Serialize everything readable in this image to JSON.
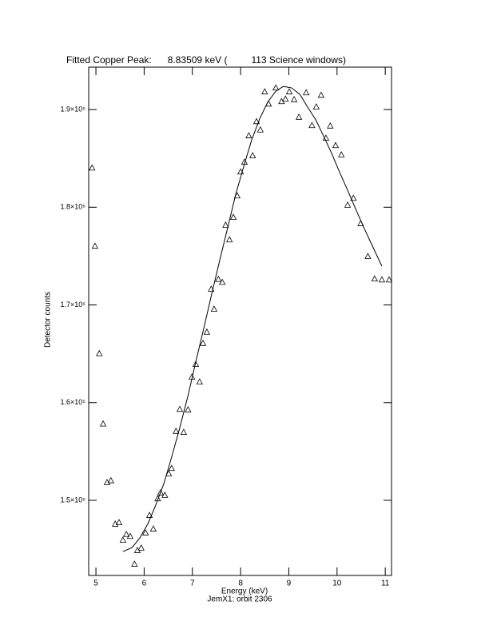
{
  "chart_data": {
    "type": "scatter",
    "title": "Fitted Copper Peak:      8.83509 keV (         113 Science windows)",
    "x_label": "Energy (keV)",
    "subtitle": "JemX1: orbit 2306",
    "y_label": "Detector counts",
    "xlim": [
      4.85,
      11.13
    ],
    "ylim": [
      142310,
      194340
    ],
    "xticks": [
      5,
      6,
      7,
      8,
      9,
      10,
      11
    ],
    "yticks": [
      {
        "value": 150000,
        "label": "1.5×10⁵"
      },
      {
        "value": 160000,
        "label": "1.6×10⁵"
      },
      {
        "value": 170000,
        "label": "1.7×10⁵"
      },
      {
        "value": 180000,
        "label": "1.8×10⁵"
      },
      {
        "value": 190000,
        "label": "1.9×10⁵"
      }
    ],
    "series": [
      {
        "style": "marker",
        "color": "#000000",
        "x": [
          4.92,
          4.98,
          5.07,
          5.15,
          5.23,
          5.31,
          5.4,
          5.48,
          5.56,
          5.63,
          5.71,
          5.8,
          5.86,
          5.94,
          6.03,
          6.11,
          6.19,
          6.28,
          6.34,
          6.43,
          6.51,
          6.57,
          6.66,
          6.74,
          6.82,
          6.91,
          6.99,
          7.07,
          7.15,
          7.22,
          7.3,
          7.39,
          7.45,
          7.54,
          7.62,
          7.69,
          7.77,
          7.85,
          7.93,
          8.0,
          8.08,
          8.17,
          8.25,
          8.33,
          8.41,
          8.5,
          8.58,
          8.73,
          8.85,
          8.93,
          9.01,
          9.11,
          9.21,
          9.36,
          9.48,
          9.57,
          9.67,
          9.77,
          9.86,
          9.97,
          10.09,
          10.22,
          10.34,
          10.49,
          10.64,
          10.78,
          10.93,
          11.08
        ],
        "values": [
          184000,
          176000,
          165000,
          157800,
          151800,
          152000,
          147550,
          147700,
          145900,
          146500,
          146300,
          143450,
          144850,
          145100,
          146650,
          148450,
          147050,
          150150,
          150750,
          150500,
          152700,
          153250,
          157050,
          159300,
          156950,
          159250,
          162600,
          163900,
          162100,
          166050,
          167200,
          171600,
          169550,
          172600,
          172300,
          178150,
          176650,
          178950,
          181150,
          183600,
          184600,
          187300,
          185250,
          188750,
          187900,
          191800,
          190550,
          192200,
          190800,
          191050,
          191800,
          191000,
          189200,
          191700,
          188350,
          190250,
          191450,
          187050,
          188300,
          186300,
          185350,
          180200,
          180900,
          178300,
          174950,
          172650,
          172550,
          172550
        ]
      },
      {
        "style": "line",
        "color": "#000000",
        "x": [
          5.56,
          5.75,
          5.91,
          6.08,
          6.24,
          6.41,
          6.57,
          6.74,
          6.91,
          7.07,
          7.24,
          7.4,
          7.57,
          7.74,
          7.9,
          8.07,
          8.23,
          8.4,
          8.56,
          8.73,
          8.89,
          9.06,
          9.23,
          9.39,
          9.56,
          9.72,
          9.89,
          10.05,
          10.22,
          10.39,
          10.55,
          10.72,
          10.93
        ],
        "values": [
          144760,
          145170,
          146150,
          147630,
          149510,
          151720,
          154420,
          157450,
          160720,
          164150,
          167670,
          171100,
          174620,
          178060,
          181330,
          184270,
          186890,
          189100,
          190740,
          191880,
          192370,
          192210,
          191550,
          190250,
          188940,
          187300,
          185500,
          183620,
          181740,
          179780,
          177980,
          176180,
          173970
        ]
      }
    ]
  }
}
